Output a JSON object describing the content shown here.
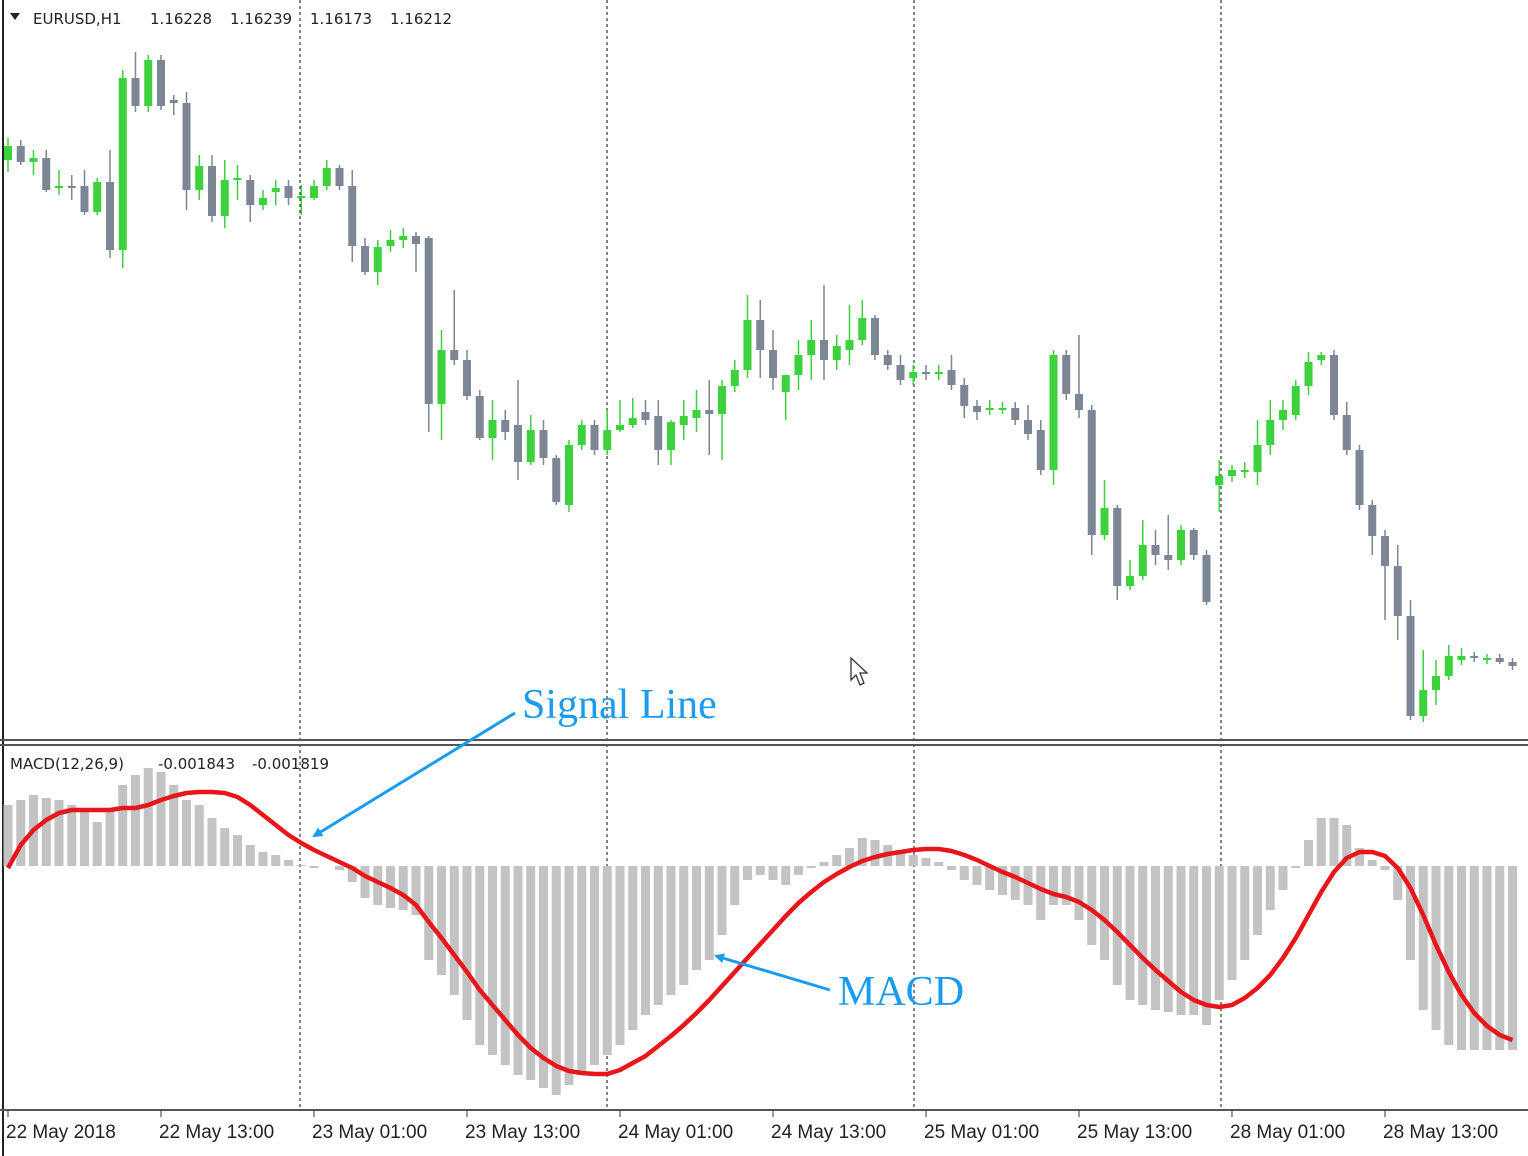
{
  "chart_data": [
    {
      "type": "candlestick",
      "title": "EURUSD,H1",
      "header_values": [
        1.16228,
        1.16239,
        1.16173,
        1.16212
      ],
      "up_color": "#3dd13d",
      "down_color": "#7d8694",
      "ylim": [
        1.1607,
        1.1755
      ],
      "ohlc": [
        [
          1.1723,
          1.17274,
          1.17206,
          1.17258
        ],
        [
          1.17258,
          1.1727,
          1.1722,
          1.17226
        ],
        [
          1.17226,
          1.1725,
          1.172,
          1.17234
        ],
        [
          1.17234,
          1.1725,
          1.17166,
          1.1717
        ],
        [
          1.17174,
          1.1721,
          1.1716,
          1.17178
        ],
        [
          1.17178,
          1.172,
          1.1715,
          1.17174
        ],
        [
          1.17178,
          1.1721,
          1.1712,
          1.17126
        ],
        [
          1.17126,
          1.17194,
          1.1712,
          1.17186
        ],
        [
          1.17186,
          1.1725,
          1.17034,
          1.1705
        ],
        [
          1.1705,
          1.1741,
          1.17014,
          1.17394
        ],
        [
          1.17394,
          1.17446,
          1.17326,
          1.17338
        ],
        [
          1.17338,
          1.1744,
          1.17326,
          1.1743
        ],
        [
          1.1743,
          1.1744,
          1.1733,
          1.17338
        ],
        [
          1.1735,
          1.1736,
          1.1732,
          1.17344
        ],
        [
          1.17344,
          1.17366,
          1.1713,
          1.1717
        ],
        [
          1.1717,
          1.1724,
          1.1715,
          1.17218
        ],
        [
          1.17218,
          1.1724,
          1.17106,
          1.17118
        ],
        [
          1.17118,
          1.1723,
          1.17094,
          1.1719
        ],
        [
          1.1719,
          1.1722,
          1.1715,
          1.17194
        ],
        [
          1.1719,
          1.172,
          1.17106,
          1.1714
        ],
        [
          1.1714,
          1.1717,
          1.1713,
          1.17154
        ],
        [
          1.17166,
          1.1719,
          1.1714,
          1.17174
        ],
        [
          1.17178,
          1.1719,
          1.1714,
          1.17154
        ],
        [
          1.17158,
          1.1718,
          1.1712,
          1.17158
        ],
        [
          1.17154,
          1.1719,
          1.1715,
          1.17178
        ],
        [
          1.17178,
          1.1723,
          1.1717,
          1.17214
        ],
        [
          1.17214,
          1.1722,
          1.1717,
          1.17178
        ],
        [
          1.17178,
          1.1721,
          1.17026,
          1.17058
        ],
        [
          1.17058,
          1.17074,
          1.17,
          1.17006
        ],
        [
          1.17006,
          1.1707,
          1.1698,
          1.17056
        ],
        [
          1.17058,
          1.1709,
          1.17046,
          1.1707
        ],
        [
          1.1707,
          1.17094,
          1.17054,
          1.17078
        ],
        [
          1.17078,
          1.17086,
          1.17006,
          1.17062
        ],
        [
          1.17074,
          1.17078,
          1.16686,
          1.16742
        ],
        [
          1.16742,
          1.1689,
          1.1667,
          1.1685
        ],
        [
          1.1685,
          1.1697,
          1.1682,
          1.1683
        ],
        [
          1.1683,
          1.1685,
          1.1675,
          1.16758
        ],
        [
          1.16758,
          1.1677,
          1.1667,
          1.16674
        ],
        [
          1.16674,
          1.1675,
          1.1663,
          1.1671
        ],
        [
          1.1671,
          1.1673,
          1.1667,
          1.16686
        ],
        [
          1.167,
          1.1679,
          1.1659,
          1.16626
        ],
        [
          1.16626,
          1.1672,
          1.1662,
          1.1669
        ],
        [
          1.1669,
          1.1671,
          1.1662,
          1.16634
        ],
        [
          1.16634,
          1.1664,
          1.1654,
          1.16546
        ],
        [
          1.1654,
          1.1667,
          1.16526,
          1.1666
        ],
        [
          1.1666,
          1.1671,
          1.1665,
          1.167
        ],
        [
          1.167,
          1.1671,
          1.1664,
          1.1665
        ],
        [
          1.1665,
          1.1673,
          1.1664,
          1.1669
        ],
        [
          1.1669,
          1.1675,
          1.16686,
          1.167
        ],
        [
          1.167,
          1.16754,
          1.16694,
          1.16714
        ],
        [
          1.16726,
          1.1675,
          1.167,
          1.1671
        ],
        [
          1.16718,
          1.1675,
          1.1662,
          1.1665
        ],
        [
          1.1665,
          1.1671,
          1.1662,
          1.16706
        ],
        [
          1.167,
          1.1675,
          1.1667,
          1.16718
        ],
        [
          1.16714,
          1.1677,
          1.16686,
          1.1673
        ],
        [
          1.1673,
          1.1679,
          1.1664,
          1.16722
        ],
        [
          1.16722,
          1.1679,
          1.1663,
          1.16778
        ],
        [
          1.16778,
          1.1683,
          1.16766,
          1.1681
        ],
        [
          1.1681,
          1.1696,
          1.16794,
          1.1691
        ],
        [
          1.1691,
          1.1695,
          1.16794,
          1.1685
        ],
        [
          1.1685,
          1.1689,
          1.1677,
          1.16794
        ],
        [
          1.16766,
          1.168,
          1.1671,
          1.168
        ],
        [
          1.168,
          1.1687,
          1.1677,
          1.1684
        ],
        [
          1.1684,
          1.1691,
          1.1679,
          1.1687
        ],
        [
          1.1687,
          1.1698,
          1.1679,
          1.1683
        ],
        [
          1.1683,
          1.1688,
          1.1681,
          1.16858
        ],
        [
          1.1685,
          1.1694,
          1.1682,
          1.1687
        ],
        [
          1.1687,
          1.1695,
          1.1686,
          1.16914
        ],
        [
          1.16914,
          1.1692,
          1.1683,
          1.1684
        ],
        [
          1.1684,
          1.1685,
          1.1681,
          1.1682
        ],
        [
          1.1682,
          1.1684,
          1.1678,
          1.1679
        ],
        [
          1.16794,
          1.1682,
          1.1678,
          1.16806
        ],
        [
          1.16806,
          1.1682,
          1.1679,
          1.16804
        ],
        [
          1.16806,
          1.1682,
          1.1679,
          1.16806
        ],
        [
          1.1681,
          1.1684,
          1.1677,
          1.1678
        ],
        [
          1.1678,
          1.16794,
          1.16714,
          1.16738
        ],
        [
          1.16738,
          1.1675,
          1.1671,
          1.16726
        ],
        [
          1.1673,
          1.1675,
          1.1672,
          1.16734
        ],
        [
          1.16734,
          1.16746,
          1.16722,
          1.16734
        ],
        [
          1.16734,
          1.16746,
          1.167,
          1.1671
        ],
        [
          1.1671,
          1.1674,
          1.1667,
          1.16682
        ],
        [
          1.1669,
          1.1671,
          1.166,
          1.1661
        ],
        [
          1.1661,
          1.1685,
          1.1658,
          1.1684
        ],
        [
          1.1684,
          1.1685,
          1.1675,
          1.16762
        ],
        [
          1.16762,
          1.1688,
          1.16714,
          1.1673
        ],
        [
          1.1673,
          1.1674,
          1.1644,
          1.1648
        ],
        [
          1.1648,
          1.1659,
          1.1647,
          1.16534
        ],
        [
          1.16534,
          1.1654,
          1.1635,
          1.16378
        ],
        [
          1.16378,
          1.1643,
          1.1637,
          1.16398
        ],
        [
          1.16398,
          1.1651,
          1.1639,
          1.1646
        ],
        [
          1.1646,
          1.1649,
          1.1642,
          1.1644
        ],
        [
          1.1644,
          1.1652,
          1.1641,
          1.1643
        ],
        [
          1.1643,
          1.165,
          1.1642,
          1.1649
        ],
        [
          1.1649,
          1.16494,
          1.1643,
          1.1644
        ],
        [
          1.1644,
          1.1645,
          1.1634,
          1.16346
        ],
        [
          1.1658,
          1.1663,
          1.16526,
          1.16598
        ],
        [
          1.16598,
          1.1662,
          1.16586,
          1.1661
        ],
        [
          1.16606,
          1.16626,
          1.16594,
          1.1661
        ],
        [
          1.16606,
          1.1671,
          1.1658,
          1.1666
        ],
        [
          1.1666,
          1.1675,
          1.1664,
          1.1671
        ],
        [
          1.1671,
          1.1675,
          1.1669,
          1.1673
        ],
        [
          1.1672,
          1.1679,
          1.1671,
          1.16778
        ],
        [
          1.16778,
          1.16846,
          1.1676,
          1.16826
        ],
        [
          1.1683,
          1.16846,
          1.1682,
          1.1684
        ],
        [
          1.1684,
          1.1685,
          1.1671,
          1.1672
        ],
        [
          1.1672,
          1.16746,
          1.1664,
          1.1665
        ],
        [
          1.1665,
          1.1666,
          1.1653,
          1.1654
        ],
        [
          1.1654,
          1.1655,
          1.1644,
          1.16478
        ],
        [
          1.16478,
          1.1649,
          1.1631,
          1.16418
        ],
        [
          1.16418,
          1.1646,
          1.1627,
          1.16318
        ],
        [
          1.16318,
          1.1635,
          1.1611,
          1.16118
        ],
        [
          1.16118,
          1.1625,
          1.16106,
          1.1617
        ],
        [
          1.1617,
          1.1623,
          1.1614,
          1.16198
        ],
        [
          1.16198,
          1.1626,
          1.1619,
          1.16238
        ],
        [
          1.1623,
          1.16254,
          1.1622,
          1.16238
        ],
        [
          1.16238,
          1.16246,
          1.16226,
          1.16234
        ],
        [
          1.16234,
          1.16242,
          1.16222,
          1.16234
        ],
        [
          1.16234,
          1.16242,
          1.16222,
          1.16226
        ],
        [
          1.16226,
          1.16234,
          1.1621,
          1.16218
        ]
      ]
    },
    {
      "type": "bar",
      "title": "MACD(12,26,9)",
      "header_values": [
        -0.001843,
        -0.001819
      ],
      "ylim": [
        -0.00244,
        0.00121
      ],
      "categories": [
        "22 May 2018",
        null,
        null,
        null,
        null,
        null,
        null,
        null,
        null,
        null,
        null,
        null,
        "22 May 13:00",
        null,
        null,
        null,
        null,
        null,
        null,
        null,
        null,
        null,
        null,
        null,
        "23 May 01:00",
        null,
        null,
        null,
        null,
        null,
        null,
        null,
        null,
        null,
        null,
        null,
        "23 May 13:00",
        null,
        null,
        null,
        null,
        null,
        null,
        null,
        null,
        null,
        null,
        null,
        "24 May 01:00",
        null,
        null,
        null,
        null,
        null,
        null,
        null,
        null,
        null,
        null,
        null,
        "24 May 13:00",
        null,
        null,
        null,
        null,
        null,
        null,
        null,
        null,
        null,
        null,
        null,
        "25 May 01:00",
        null,
        null,
        null,
        null,
        null,
        null,
        null,
        null,
        null,
        null,
        null,
        "25 May 13:00",
        null,
        null,
        null,
        null,
        null,
        null,
        null,
        null,
        null,
        null,
        null,
        "28 May 01:00",
        null,
        null,
        null,
        null,
        null,
        null,
        null,
        null,
        null,
        null,
        null,
        "28 May 13:00",
        null,
        null,
        null,
        null,
        null,
        null,
        null,
        null,
        null,
        null
      ],
      "series": [
        {
          "type": "bar",
          "color": "#c3c3c3",
          "values": [
            0.00061,
            0.00066,
            0.00071,
            0.00068,
            0.00066,
            0.00061,
            0.00056,
            0.00044,
            0.00058,
            0.00081,
            0.00091,
            0.00098,
            0.00094,
            0.00081,
            0.00066,
            0.00061,
            0.00048,
            0.00038,
            0.00031,
            0.00021,
            0.00014,
            0.00011,
            6e-05,
            1e-05,
            -2e-05,
            0,
            -4e-05,
            -0.00016,
            -0.00032,
            -0.00039,
            -0.00042,
            -0.00044,
            -0.00049,
            -0.00094,
            -0.00109,
            -0.00129,
            -0.00154,
            -0.00179,
            -0.00189,
            -0.00199,
            -0.00209,
            -0.00214,
            -0.00222,
            -0.00229,
            -0.00219,
            -0.00209,
            -0.00199,
            -0.00189,
            -0.00179,
            -0.00164,
            -0.00149,
            -0.00139,
            -0.00129,
            -0.00119,
            -0.00104,
            -0.00094,
            -0.00069,
            -0.00039,
            -0.00014,
            -9e-05,
            -0.00014,
            -0.00019,
            -9e-05,
            -2e-05,
            4e-05,
            0.00011,
            0.00018,
            0.00028,
            0.00026,
            0.00021,
            0.00016,
            0.00011,
            8e-05,
            4e-05,
            -4e-05,
            -0.00014,
            -0.00019,
            -0.00024,
            -0.00029,
            -0.00034,
            -0.00039,
            -0.00054,
            -0.00039,
            -0.00039,
            -0.00054,
            -0.00079,
            -0.00094,
            -0.00119,
            -0.00134,
            -0.00139,
            -0.00144,
            -0.00146,
            -0.00149,
            -0.00149,
            -0.00159,
            -0.00134,
            -0.00114,
            -0.00094,
            -0.00069,
            -0.00044,
            -0.00024,
            -2e-05,
            0.00026,
            0.00048,
            0.00048,
            0.00041,
            0.00018,
            6e-05,
            -4e-05,
            -0.00034,
            -0.00094,
            -0.00144,
            -0.00164,
            -0.00179,
            -0.00184,
            -0.00184,
            -0.00184,
            -0.00184,
            -0.00184
          ]
        },
        {
          "type": "line",
          "color": "#e8161b",
          "values": [
            -2e-05,
            0.00021,
            0.00036,
            0.00046,
            0.00053,
            0.00056,
            0.00056,
            0.00056,
            0.00056,
            0.00058,
            0.00058,
            0.00061,
            0.00066,
            0.0007,
            0.00073,
            0.00074,
            0.00074,
            0.00073,
            0.00069,
            0.00061,
            0.00051,
            0.00041,
            0.00031,
            0.00023,
            0.00016,
            0.0001,
            4e-05,
            -2e-05,
            -0.0001,
            -0.00016,
            -0.00022,
            -0.00029,
            -0.00039,
            -0.00056,
            -0.00072,
            -0.00089,
            -0.00106,
            -0.00124,
            -0.00139,
            -0.00154,
            -0.00169,
            -0.00182,
            -0.00192,
            -0.002,
            -0.00205,
            -0.00207,
            -0.00208,
            -0.00208,
            -0.00204,
            -0.00197,
            -0.0019,
            -0.0018,
            -0.0017,
            -0.00159,
            -0.00147,
            -0.00134,
            -0.0012,
            -0.00106,
            -0.00092,
            -0.00078,
            -0.00064,
            -0.0005,
            -0.00037,
            -0.00026,
            -0.00016,
            -8e-05,
            -1e-05,
            5e-05,
            9e-05,
            0.00012,
            0.00014,
            0.00016,
            0.00017,
            0.00017,
            0.00015,
            0.00011,
            6e-05,
            0,
            -6e-05,
            -0.00011,
            -0.00017,
            -0.00023,
            -0.00028,
            -0.00031,
            -0.00036,
            -0.00044,
            -0.00054,
            -0.00066,
            -0.00079,
            -0.00092,
            -0.00104,
            -0.00115,
            -0.00126,
            -0.00134,
            -0.00139,
            -0.00141,
            -0.00139,
            -0.00132,
            -0.00122,
            -0.00109,
            -0.00092,
            -0.00072,
            -0.00049,
            -0.00026,
            -6e-05,
            8e-05,
            0.00014,
            0.00014,
            0.0001,
            -2e-05,
            -0.00022,
            -0.00049,
            -0.00079,
            -0.00106,
            -0.00129,
            -0.00147,
            -0.0016,
            -0.00169,
            -0.00174
          ]
        }
      ],
      "annotations": [
        {
          "text": "Signal Line"
        },
        {
          "text": "MACD"
        }
      ]
    }
  ]
}
